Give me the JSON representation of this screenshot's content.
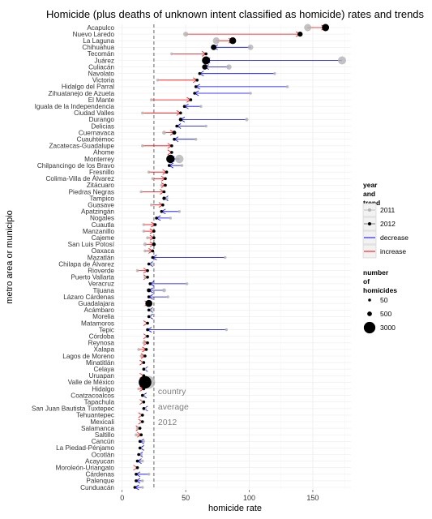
{
  "chart_data": {
    "type": "scatter",
    "title": "Homicide (plus deaths of unknown intent classified as homicide) rates and trends",
    "xlabel": "homicide rate",
    "ylabel": "metro area or municipio",
    "xlim": [
      -3,
      180
    ],
    "xticks": [
      0,
      50,
      100,
      150
    ],
    "grid": true,
    "reference_line": {
      "value": 25,
      "labels": [
        "country",
        "average",
        "2012"
      ]
    },
    "legend": {
      "placement": "right",
      "trend_title": [
        "year",
        "and",
        "trend"
      ],
      "trend_items": [
        "2011",
        "2012",
        "decrease",
        "increase"
      ],
      "size_title": [
        "number",
        "of",
        "homicides"
      ],
      "size_items": [
        50,
        500,
        3000
      ]
    },
    "colors": {
      "rate_2011": "#b3b3b3",
      "rate_2012": "#000000",
      "decrease": "#0000ff",
      "increase": "#ff0000",
      "reference": "#555555",
      "panel_grid": "#ececec"
    },
    "categories": [
      "Acapulco",
      "Nuevo Laredo",
      "La Laguna",
      "Chihuahua",
      "Tecomán",
      "Juárez",
      "Culiacán",
      "Navolato",
      "Victoria",
      "Hidalgo del Parral",
      "Zihuatanejo de Azueta",
      "El Mante",
      "Iguala de la Independencia",
      "Ciudad Valles",
      "Durango",
      "Delicias",
      "Cuernavaca",
      "Cuauhtémoc",
      "Zacatecas-Guadalupe",
      "Ahome",
      "Monterrey",
      "Chilpancingo de los Bravo",
      "Fresnillo",
      "Colima-Villa de Álvarez",
      "Zitácuaro",
      "Piedras Negras",
      "Tampico",
      "Guasave",
      "Apatzingán",
      "Nogales",
      "Cuautla",
      "Manzanillo",
      "Cajeme",
      "San Luis Potosí",
      "Oaxaca",
      "Mazatlán",
      "Chilapa de Álvarez",
      "Rioverde",
      "Puerto Vallarta",
      "Veracruz",
      "Tijuana",
      "Lázaro Cárdenas",
      "Guadalajara",
      "Acámbaro",
      "Morelia",
      "Matamoros",
      "Tepic",
      "Córdoba",
      "Reynosa",
      "Xalapa",
      "Lagos de Moreno",
      "Minatitlán",
      "Celaya",
      "Uruapan",
      "Valle de México",
      "Hidalgo",
      "Coatzacoalcos",
      "Tapachula",
      "San Juan Bautista Tuxtepec",
      "Tehuantepec",
      "Mexicali",
      "Salamanca",
      "Saltillo",
      "Cancún",
      "La Piedad-Pénjamo",
      "Ocotlán",
      "Acayucan",
      "Moroleón-Uriangato",
      "Cárdenas",
      "Palenque",
      "Cunduacán"
    ],
    "series": [
      {
        "name": "2011",
        "values": [
          146,
          50,
          74,
          101,
          39,
          173,
          84,
          120,
          28,
          130,
          101,
          23,
          62,
          16,
          98,
          66,
          33,
          58,
          16,
          39,
          45,
          47,
          21,
          24,
          31,
          15,
          35,
          23,
          45,
          38,
          17,
          17,
          20,
          18,
          18,
          81,
          23,
          12,
          18,
          51,
          33,
          36,
          21,
          23,
          22,
          20,
          82,
          19,
          17,
          13,
          15,
          16,
          18,
          17,
          21,
          13,
          17,
          16,
          18,
          15,
          15,
          12,
          11,
          17,
          15,
          15,
          16,
          12,
          21,
          16,
          16
        ]
      },
      {
        "name": "2012",
        "values": [
          160,
          140,
          87,
          72,
          66,
          66,
          65,
          61,
          59,
          58,
          57,
          54,
          49,
          46,
          46,
          43,
          41,
          41,
          39,
          39,
          38,
          37,
          35,
          34,
          34,
          33,
          33,
          32,
          31,
          27,
          26,
          25,
          25,
          25,
          24,
          24,
          21,
          20,
          20,
          22,
          21,
          21,
          21,
          21,
          21,
          20,
          20,
          20,
          20,
          19,
          18,
          17,
          17,
          17,
          18,
          17,
          16,
          17,
          17,
          16,
          16,
          14,
          15,
          14,
          14,
          13,
          12,
          12,
          11,
          11,
          10
        ]
      }
    ],
    "homicides_2012": [
      1170,
      570,
      1050,
      700,
      90,
      1500,
      620,
      80,
      190,
      60,
      70,
      60,
      70,
      80,
      290,
      90,
      350,
      70,
      120,
      160,
      1600,
      95,
      80,
      120,
      50,
      60,
      250,
      90,
      50,
      80,
      100,
      60,
      120,
      300,
      130,
      110,
      40,
      30,
      80,
      170,
      350,
      50,
      1100,
      40,
      170,
      150,
      90,
      60,
      160,
      80,
      30,
      70,
      90,
      60,
      3600,
      60,
      60,
      40,
      40,
      30,
      160,
      50,
      110,
      90,
      40,
      30,
      30,
      30,
      30,
      20,
      20
    ]
  }
}
